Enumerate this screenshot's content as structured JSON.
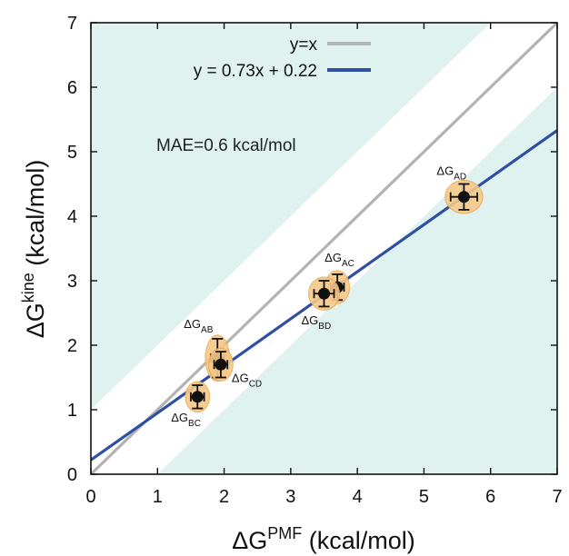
{
  "chart_data": {
    "type": "scatter",
    "xlabel": {
      "prefix": "ΔG",
      "sup": "PMF",
      "unit": " (kcal/mol)"
    },
    "ylabel": {
      "prefix": "ΔG",
      "sup": "kine",
      "unit": " (kcal/mol)"
    },
    "xlim": [
      0,
      7
    ],
    "ylim": [
      0,
      7
    ],
    "xticks": [
      "0",
      "1",
      "2",
      "3",
      "4",
      "5",
      "6",
      "7"
    ],
    "yticks": [
      "0",
      "1",
      "2",
      "3",
      "4",
      "5",
      "6",
      "7"
    ],
    "band_halfwidth": 1.0,
    "band_color": "#e0f2ef",
    "series": [
      {
        "name": "y=x",
        "type": "line",
        "slope": 1,
        "intercept": 0,
        "color": "#b3b3b3"
      },
      {
        "name": "y = 0.73x + 0.22",
        "type": "line",
        "slope": 0.73,
        "intercept": 0.22,
        "color": "#2e4fa3"
      }
    ],
    "points": [
      {
        "label": "AB",
        "x": 1.9,
        "y": 1.8,
        "xerr": 0.1,
        "yerr": 0.3
      },
      {
        "label": "CD",
        "x": 1.95,
        "y": 1.7,
        "xerr": 0.1,
        "yerr": 0.2
      },
      {
        "label": "BC",
        "x": 1.6,
        "y": 1.2,
        "xerr": 0.1,
        "yerr": 0.18
      },
      {
        "label": "AC",
        "x": 3.7,
        "y": 2.9,
        "xerr": 0.1,
        "yerr": 0.2
      },
      {
        "label": "BD",
        "x": 3.5,
        "y": 2.8,
        "xerr": 0.15,
        "yerr": 0.2
      },
      {
        "label": "AD",
        "x": 5.6,
        "y": 4.3,
        "xerr": 0.2,
        "yerr": 0.2
      }
    ],
    "annotation": "MAE=0.6 kcal/mol",
    "legend_position": "top-right",
    "colors": {
      "point": "#111111",
      "halo": "#f6c98a",
      "halo_edge": "#e9a84d"
    }
  }
}
